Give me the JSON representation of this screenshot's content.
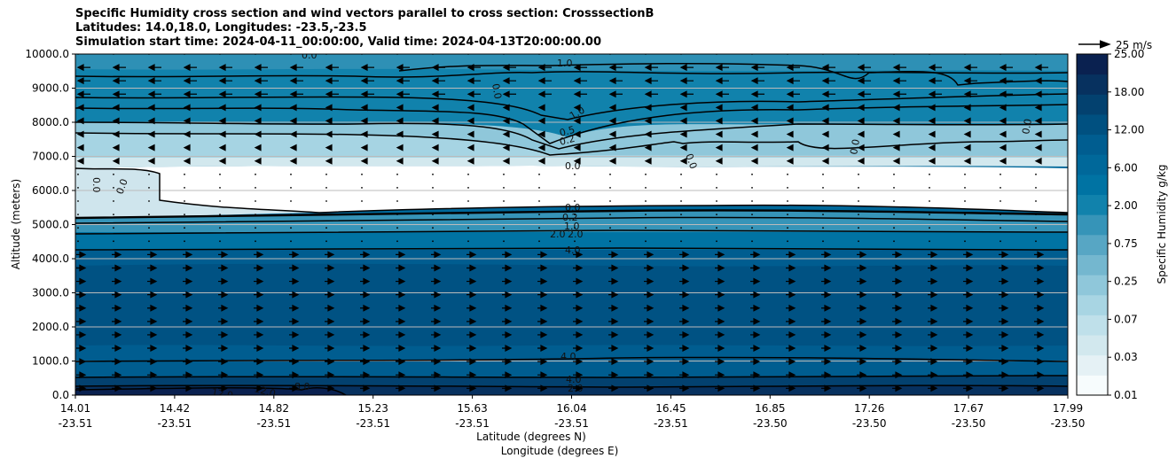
{
  "chart_data": {
    "type": "contourf",
    "title_lines": [
      "Specific Humidity cross section and wind vectors parallel to cross section: CrosssectionB",
      "Latitudes: 14.0,18.0, Longitudes: -23.5,-23.5",
      "Simulation start time: 2024-04-11_00:00:00, Valid time: 2024-04-13T20:00:00.00"
    ],
    "ylabel": "Altitude (meters)",
    "xlabel_lat": "Latitude (degrees N)",
    "xlabel_lon": "Longitude (degrees E)",
    "ylim": [
      0,
      10000
    ],
    "y_ticks": [
      "0.0",
      "1000.0",
      "2000.0",
      "3000.0",
      "4000.0",
      "5000.0",
      "6000.0",
      "7000.0",
      "8000.0",
      "9000.0",
      "10000.0"
    ],
    "x_ticks": [
      {
        "lat": "14.01",
        "lon": "-23.51"
      },
      {
        "lat": "14.42",
        "lon": "-23.51"
      },
      {
        "lat": "14.82",
        "lon": "-23.51"
      },
      {
        "lat": "15.23",
        "lon": "-23.51"
      },
      {
        "lat": "15.63",
        "lon": "-23.51"
      },
      {
        "lat": "16.04",
        "lon": "-23.51"
      },
      {
        "lat": "16.45",
        "lon": "-23.51"
      },
      {
        "lat": "16.85",
        "lon": "-23.50"
      },
      {
        "lat": "17.26",
        "lon": "-23.50"
      },
      {
        "lat": "17.67",
        "lon": "-23.50"
      },
      {
        "lat": "17.99",
        "lon": "-23.50"
      }
    ],
    "colorbar": {
      "label": "Specific Humidity g/kg",
      "ticks": [
        "0.01",
        "0.03",
        "0.07",
        "0.25",
        "0.75",
        "2.00",
        "6.00",
        "12.00",
        "18.00",
        "25.00"
      ],
      "colors": [
        "#f7fcfd",
        "#e5f1f5",
        "#d2e8ee",
        "#bfe0ea",
        "#a8d5e3",
        "#8fc7da",
        "#74b7cf",
        "#57a6c4",
        "#3694b8",
        "#1182ac",
        "#0073a3",
        "#00689a",
        "#005d90",
        "#005080",
        "#03416f",
        "#07315f",
        "#0a2150"
      ]
    },
    "quiver_key": "25 m/s",
    "humidity_layers": [
      {
        "range_m": [
          0,
          300
        ],
        "value_gkg": 14
      },
      {
        "range_m": [
          300,
          1000
        ],
        "value_gkg": 6
      },
      {
        "range_m": [
          1000,
          4300
        ],
        "value_gkg": 4.5
      },
      {
        "range_m": [
          4300,
          5200
        ],
        "value_gkg": 2
      },
      {
        "range_m": [
          5200,
          6500
        ],
        "value_gkg": 0.01
      },
      {
        "range_m": [
          6500,
          8500
        ],
        "value_gkg": 0.2
      },
      {
        "range_m": [
          8500,
          10000
        ],
        "value_gkg": 0.9
      }
    ],
    "contour_labels": [
      "1.0",
      "0.0",
      "1.0",
      "0.5",
      "0.2",
      "0.0",
      "0.0",
      "0.0",
      "0.0",
      "0.0",
      "0.0",
      "0.0",
      "0.0",
      "0.2",
      "1.0",
      "2.0",
      "2.0",
      "4.0",
      "4.0",
      "4.0",
      "2.0",
      "12.0",
      "12.0",
      "8.0"
    ],
    "wind": [
      {
        "range_m": [
          0,
          4500
        ],
        "direction": "east"
      },
      {
        "range_m": [
          4500,
          6500
        ],
        "direction": "calm"
      },
      {
        "range_m": [
          6500,
          10000
        ],
        "direction": "west"
      }
    ]
  }
}
